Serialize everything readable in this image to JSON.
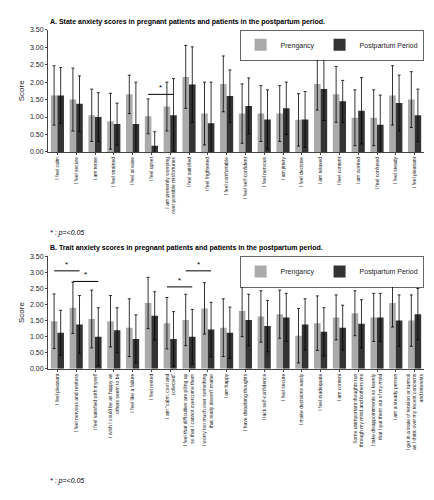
{
  "chart_data": [
    {
      "type": "bar",
      "title": "A. State anxiety scores in pregnant patients and patients in the postpartum period.",
      "ylabel": "Score",
      "note": "* : p=<0.05",
      "legend": "upper right",
      "grid": false,
      "ylim": [
        0,
        3.5
      ],
      "yticks": [
        {
          "value": 0,
          "label": "0.00"
        },
        {
          "value": 0.5,
          "label": "0.50"
        },
        {
          "value": 1,
          "label": "1.00"
        },
        {
          "value": 1.5,
          "label": "1.50"
        },
        {
          "value": 2,
          "label": "2.00"
        },
        {
          "value": 2.5,
          "label": "2.50"
        },
        {
          "value": 3,
          "label": "3.00"
        },
        {
          "value": 3.5,
          "label": "3.50"
        }
      ],
      "categories": [
        "I feel calm",
        "I feel secure",
        "I am tense",
        "I feel strained",
        "I feel at ease",
        "I feel upset",
        "I am presently worrying\nover possible misfortunes",
        "I feel satisfied",
        "I feel frightened",
        "I feel comfortable",
        "I feel self-confident",
        "I feel nervous",
        "I am jittery",
        "I feel decisive",
        "I am relaxed",
        "I feel content",
        "I am worried",
        "I feel confused",
        "I feel steady",
        "I feel pleasant"
      ],
      "series": [
        {
          "name": "Prengancy",
          "color": "#aaaaaa",
          "values": [
            1.62,
            1.5,
            1.05,
            0.88,
            1.65,
            1.02,
            1.3,
            2.15,
            1.1,
            1.95,
            1.1,
            1.1,
            1.1,
            0.92,
            1.95,
            1.65,
            0.98,
            0.98,
            1.62,
            1.5
          ],
          "errors": [
            0.85,
            0.9,
            0.75,
            0.8,
            0.55,
            0.5,
            0.7,
            0.9,
            0.9,
            0.8,
            0.85,
            0.8,
            0.8,
            0.75,
            0.75,
            0.8,
            0.8,
            0.8,
            0.85,
            0.8
          ]
        },
        {
          "name": "Postpartum Period",
          "color": "#333333",
          "values": [
            1.62,
            1.38,
            1.0,
            0.8,
            0.8,
            0.18,
            1.05,
            1.93,
            0.82,
            1.6,
            1.32,
            0.93,
            1.25,
            0.93,
            1.8,
            1.45,
            1.18,
            0.78,
            1.4,
            1.05
          ],
          "errors": [
            0.8,
            0.8,
            0.7,
            0.6,
            1.2,
            0.4,
            1.05,
            1.08,
            1.18,
            0.75,
            0.8,
            0.85,
            0.75,
            0.8,
            0.9,
            0.6,
            0.95,
            0.85,
            0.8,
            0.75
          ]
        }
      ],
      "significance": [
        {
          "from": 5,
          "to": 6,
          "y": 1.65,
          "label": "*"
        }
      ]
    },
    {
      "type": "bar",
      "title": "B. Trait anxiety scores in pregnant patients and patients in the postpartum period.",
      "ylabel": "Score",
      "note": "* : p=<0.05",
      "legend": "upper right",
      "grid": false,
      "ylim": [
        0,
        3.5
      ],
      "yticks": [
        {
          "value": 0,
          "label": "0.00"
        },
        {
          "value": 0.5,
          "label": "0.50"
        },
        {
          "value": 1,
          "label": "1.00"
        },
        {
          "value": 1.5,
          "label": "1.50"
        },
        {
          "value": 2,
          "label": "2.00"
        },
        {
          "value": 2.5,
          "label": "2.50"
        },
        {
          "value": 3,
          "label": "3.00"
        },
        {
          "value": 3.5,
          "label": "3.50"
        }
      ],
      "categories": [
        "I feel pleasant",
        "I feel nervous and restless",
        "I feel satisfied with myself",
        "I wish I could be as happy as\nothers seem to be",
        "I feel like a failure",
        "I feel rested",
        "I am \"calm, cool and\ncollected\"",
        "I feel that difficulties are piling up\nso that I cannot overcome them",
        "I worry too much over something\nthat really doesn't matter",
        "I am happy",
        "I have disturbing thoughts",
        "I lack self-confidence",
        "I feel secure",
        "I make decisions easily",
        "I feel inadequate",
        "I am content",
        "Some unimportant thoughts run\nthrough my mind and bothers me",
        "I take disappointments so keenly\nthat I put them out of my mind",
        "I am a steady person",
        "I get in a state of tension or turmoil\nas I think over my recent concerns\nand interests"
      ],
      "series": [
        {
          "name": "Prengancy",
          "color": "#aaaaaa",
          "values": [
            1.48,
            1.9,
            1.55,
            1.48,
            1.28,
            2.05,
            1.42,
            1.52,
            1.88,
            1.28,
            1.8,
            1.63,
            1.7,
            1.03,
            1.42,
            1.6,
            1.73,
            1.6,
            2.05,
            1.5
          ],
          "errors": [
            0.85,
            0.8,
            0.9,
            0.8,
            0.9,
            0.8,
            0.8,
            0.8,
            0.8,
            0.9,
            0.8,
            0.8,
            0.75,
            0.85,
            0.85,
            0.7,
            0.7,
            0.75,
            0.75,
            0.8
          ]
        },
        {
          "name": "Postpartum Period",
          "color": "#333333",
          "values": [
            1.12,
            1.38,
            1.0,
            1.2,
            0.93,
            1.65,
            0.93,
            1.0,
            1.22,
            1.12,
            1.52,
            1.33,
            1.6,
            1.38,
            1.15,
            1.28,
            1.4,
            1.6,
            1.5,
            1.7
          ],
          "errors": [
            0.7,
            0.9,
            0.9,
            0.7,
            0.75,
            0.75,
            0.85,
            0.85,
            0.85,
            0.8,
            0.8,
            0.8,
            0.75,
            0.8,
            0.75,
            0.7,
            0.75,
            0.75,
            0.8,
            0.8
          ]
        }
      ],
      "significance": [
        {
          "from": 0,
          "to": 1,
          "y": 3.05,
          "label": "*"
        },
        {
          "from": 1,
          "to": 2,
          "y": 2.72,
          "label": "*"
        },
        {
          "from": 6,
          "to": 7,
          "y": 2.55,
          "label": "*"
        },
        {
          "from": 7,
          "to": 8,
          "y": 3.05,
          "label": "*"
        }
      ]
    }
  ]
}
